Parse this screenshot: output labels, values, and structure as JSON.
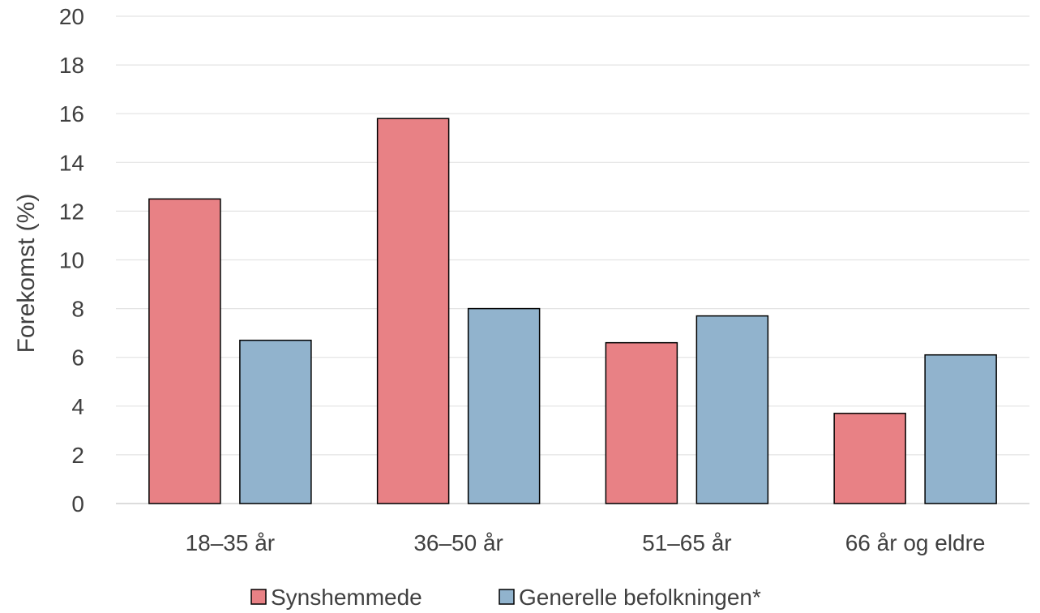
{
  "chart_data": {
    "type": "bar",
    "categories": [
      "18–35 år",
      "36–50 år",
      "51–65 år",
      "66 år og eldre"
    ],
    "series": [
      {
        "name": "Synshemmede",
        "values": [
          12.5,
          15.8,
          6.6,
          3.7
        ],
        "color": "#E88185"
      },
      {
        "name": "Generelle befolkningen*",
        "values": [
          6.7,
          8.0,
          7.7,
          6.1
        ],
        "color": "#91B3CD"
      }
    ],
    "title": "",
    "xlabel": "",
    "ylabel": "Forekomst (%)",
    "ylim": [
      0,
      20
    ],
    "yticks": [
      0,
      2,
      4,
      6,
      8,
      10,
      12,
      14,
      16,
      18,
      20
    ],
    "grid": true,
    "legend_position": "bottom",
    "colors": {
      "gridline": "#E3E3E3",
      "axis_line": "#D0D0D0",
      "bar_border": "#000000",
      "text": "#404040"
    }
  }
}
